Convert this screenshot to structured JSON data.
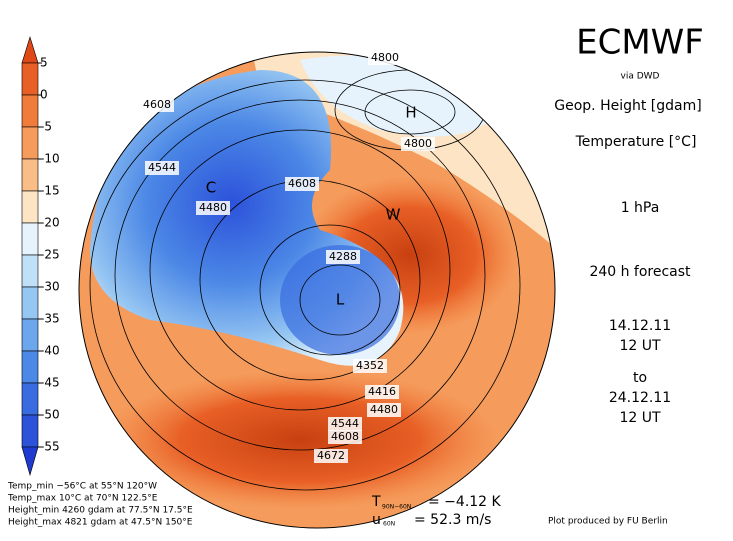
{
  "header": {
    "title": "ECMWF",
    "source": "via DWD",
    "field1": "Geop. Height [gdam]",
    "field2": "Temperature [°C]",
    "level": "1 hPa",
    "forecast": "240 h forecast",
    "start_date": "14.12.11",
    "start_time": "12 UT",
    "to": "to",
    "end_date": "24.12.11",
    "end_time": "12 UT"
  },
  "colorbar": {
    "ticks": [
      5,
      0,
      -5,
      -10,
      -15,
      -20,
      -25,
      -30,
      -35,
      -40,
      -45,
      -50,
      -55
    ],
    "colors": [
      "#e04818",
      "#e86026",
      "#f07c3c",
      "#f59c5c",
      "#f9bd88",
      "#fde4c4",
      "#e6f3fc",
      "#c0e0f8",
      "#96c6f2",
      "#6ca6ec",
      "#4c88e6",
      "#386ce0",
      "#2c52da",
      "#1e3ad0"
    ]
  },
  "map": {
    "contour_labels": [
      "4800",
      "4608",
      "4800",
      "4544",
      "4608",
      "4480",
      "4288",
      "4352",
      "4416",
      "4480",
      "4544",
      "4608",
      "4672"
    ],
    "symbols": [
      "H",
      "C",
      "W",
      "L"
    ]
  },
  "stats": [
    "Temp_min −56°C at 55°N 120°W",
    "Temp_max 10°C at 70°N 122.5°E",
    "Height_min 4260 gdam at 77.5°N 17.5°E",
    "Height_max 4821 gdam at 47.5°N 150°E"
  ],
  "footer": {
    "t_symbol": "T",
    "t_sub": "90N−60N",
    "t_value": "= −4.12 K",
    "u_symbol": "u",
    "u_sub": "60N",
    "u_value": "= 52.3 m/s",
    "credit": "Plot produced by FU Berlin"
  }
}
